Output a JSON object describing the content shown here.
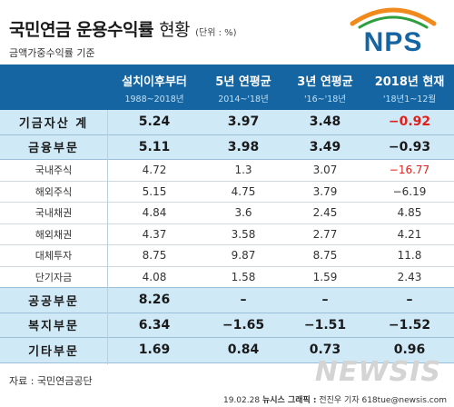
{
  "header": {
    "title": "국민연금 운용수익률",
    "title_suffix": "현황",
    "unit": "(단위 : %)",
    "subnote": "금액가중수익률 기준"
  },
  "logo": {
    "text": "NPS",
    "colors": {
      "text": "#1565a3",
      "arc_orange": "#f08a1c",
      "arc_green": "#2e9e3f"
    }
  },
  "columns": [
    {
      "label": "설치이후부터",
      "sub": "1988~2018년"
    },
    {
      "label": "5년 연평균",
      "sub": "2014~'18년"
    },
    {
      "label": "3년 연평균",
      "sub": "'16~'18년"
    },
    {
      "label": "2018년 현재",
      "sub": "'18년1~12월"
    }
  ],
  "rows": [
    {
      "label": "기금자산 계",
      "type": "major",
      "values": [
        "5.24",
        "3.97",
        "3.48",
        "−0.92"
      ],
      "negative_red": [
        false,
        false,
        false,
        true
      ]
    },
    {
      "label": "금융부문",
      "type": "major",
      "values": [
        "5.11",
        "3.98",
        "3.49",
        "−0.93"
      ],
      "negative_red": [
        false,
        false,
        false,
        false
      ]
    },
    {
      "label": "국내주식",
      "type": "minor",
      "values": [
        "4.72",
        "1.3",
        "3.07",
        "−16.77"
      ],
      "negative_red": [
        false,
        false,
        false,
        true
      ]
    },
    {
      "label": "해외주식",
      "type": "minor",
      "values": [
        "5.15",
        "4.75",
        "3.79",
        "−6.19"
      ],
      "negative_red": [
        false,
        false,
        false,
        false
      ]
    },
    {
      "label": "국내채권",
      "type": "minor",
      "values": [
        "4.84",
        "3.6",
        "2.45",
        "4.85"
      ],
      "negative_red": [
        false,
        false,
        false,
        false
      ]
    },
    {
      "label": "해외채권",
      "type": "minor",
      "values": [
        "4.37",
        "3.58",
        "2.77",
        "4.21"
      ],
      "negative_red": [
        false,
        false,
        false,
        false
      ]
    },
    {
      "label": "대체투자",
      "type": "minor",
      "values": [
        "8.75",
        "9.87",
        "8.75",
        "11.8"
      ],
      "negative_red": [
        false,
        false,
        false,
        false
      ]
    },
    {
      "label": "단기자금",
      "type": "minor",
      "values": [
        "4.08",
        "1.58",
        "1.59",
        "2.43"
      ],
      "negative_red": [
        false,
        false,
        false,
        false
      ]
    },
    {
      "label": "공공부문",
      "type": "major",
      "values": [
        "8.26",
        "–",
        "–",
        "–"
      ],
      "negative_red": [
        false,
        false,
        false,
        false
      ]
    },
    {
      "label": "복지부문",
      "type": "major",
      "values": [
        "6.34",
        "−1.65",
        "−1.51",
        "−1.52"
      ],
      "negative_red": [
        false,
        false,
        false,
        false
      ]
    },
    {
      "label": "기타부문",
      "type": "major",
      "values": [
        "1.69",
        "0.84",
        "0.73",
        "0.96"
      ],
      "negative_red": [
        false,
        false,
        false,
        false
      ]
    }
  ],
  "footer": {
    "source": "자료 : 국민연금공단",
    "credit_date": "19.02.28",
    "credit_org": "뉴시스 그래픽 :",
    "credit_name": "전진우 기자 618tue@newsis.com",
    "watermark": "NEWSIS"
  },
  "accent_colors": {
    "header_bg": "#1565a3",
    "major_row_bg": "#cfe9f7",
    "negative": "#e0201b"
  }
}
